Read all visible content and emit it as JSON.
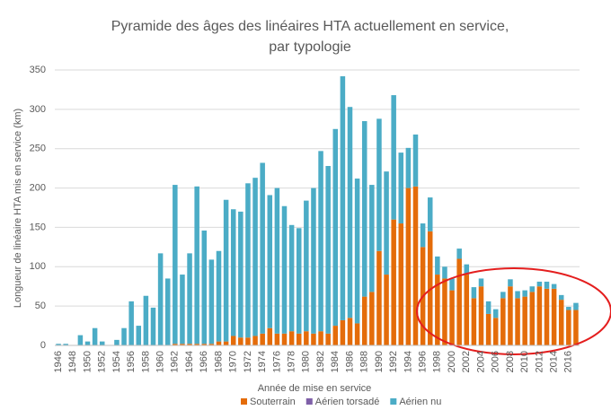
{
  "chart_data": {
    "type": "stacked-bar",
    "title": [
      "Pyramide des âges des linéaires HTA actuellement en service,",
      "par typologie"
    ],
    "y_label": "Longueur de linéaire HTA mis en service (km)",
    "x_label": "Année de mise en service",
    "categories": [
      "1946",
      null,
      "1948",
      null,
      "1950",
      null,
      "1952",
      null,
      "1954",
      null,
      "1956",
      null,
      "1958",
      null,
      "1960",
      null,
      "1962",
      null,
      "1964",
      null,
      "1966",
      null,
      "1968",
      null,
      "1970",
      null,
      "1972",
      null,
      "1974",
      null,
      "1976",
      null,
      "1978",
      null,
      "1980",
      null,
      "1982",
      null,
      "1984",
      null,
      "1986",
      null,
      "1988",
      null,
      "1990",
      null,
      "1992",
      null,
      "1994",
      null,
      "1996",
      null,
      "1998",
      null,
      "2000",
      null,
      "2002",
      null,
      "2004",
      null,
      "2006",
      null,
      "2008",
      null,
      "2010",
      null,
      "2012",
      null,
      "2014",
      null,
      "2016",
      null
    ],
    "series": [
      {
        "name": "Souterrain",
        "color": "#e46c0a",
        "values": [
          0,
          0,
          0,
          0,
          0,
          0,
          0,
          0,
          0,
          0,
          0,
          0,
          0,
          0,
          0,
          0,
          2,
          2,
          2,
          2,
          2,
          2,
          5,
          5,
          12,
          10,
          10,
          12,
          15,
          22,
          15,
          15,
          18,
          15,
          18,
          15,
          18,
          15,
          25,
          32,
          35,
          28,
          62,
          68,
          120,
          90,
          160,
          155,
          200,
          202,
          125,
          145,
          90,
          85,
          70,
          110,
          90,
          60,
          75,
          40,
          35,
          60,
          75,
          60,
          62,
          68,
          75,
          72,
          72,
          58,
          45,
          45
        ]
      },
      {
        "name": "Aérien torsadé",
        "color": "#7f60a8",
        "values": [
          0,
          0,
          0,
          0,
          0,
          0,
          0,
          0,
          0,
          0,
          0,
          0,
          0,
          0,
          0,
          0,
          0,
          0,
          0,
          0,
          0,
          0,
          0,
          0,
          0,
          0,
          0,
          0,
          0,
          0,
          0,
          0,
          0,
          0,
          0,
          0,
          0,
          0,
          0,
          0,
          0,
          0,
          0,
          0,
          0,
          0,
          0,
          0,
          0,
          0,
          0,
          0,
          0,
          0,
          0,
          0,
          0,
          0,
          0,
          0,
          0,
          0,
          0,
          0,
          0,
          0,
          0,
          0,
          0,
          0,
          0,
          0
        ]
      },
      {
        "name": "Aérien nu",
        "color": "#4bacc6",
        "values": [
          2,
          2,
          0,
          13,
          5,
          22,
          5,
          0,
          7,
          22,
          56,
          25,
          63,
          48,
          117,
          85,
          202,
          88,
          115,
          200,
          144,
          107,
          115,
          180,
          161,
          160,
          196,
          201,
          217,
          169,
          185,
          162,
          135,
          134,
          166,
          185,
          229,
          213,
          250,
          310,
          268,
          184,
          223,
          136,
          168,
          131,
          158,
          90,
          51,
          66,
          30,
          43,
          23,
          15,
          15,
          13,
          13,
          14,
          10,
          16,
          11,
          8,
          9,
          9,
          8,
          7,
          6,
          9,
          6,
          6,
          4,
          9
        ]
      }
    ],
    "ylim": [
      0,
      350
    ],
    "yticks": [
      0,
      50,
      100,
      150,
      200,
      250,
      300,
      350
    ],
    "grid": true,
    "legend": "bottom"
  }
}
